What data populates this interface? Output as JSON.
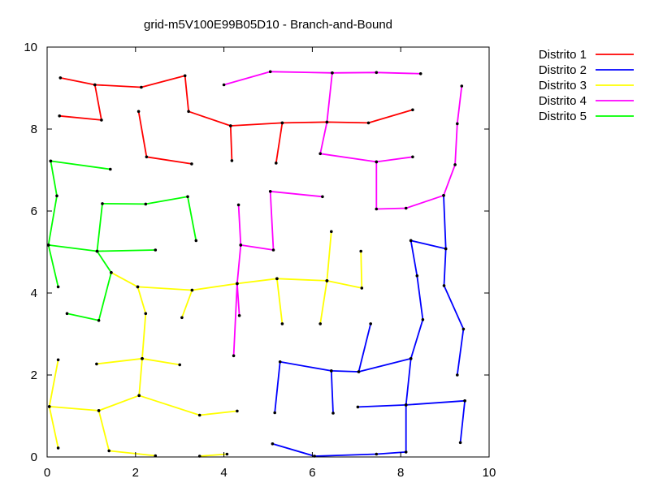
{
  "chart_data": {
    "type": "line",
    "title": "grid-m5V100E99B05D10 -  Branch-and-Bound",
    "xlabel": "",
    "ylabel": "",
    "xlim": [
      0,
      10
    ],
    "ylim": [
      0,
      10
    ],
    "x_ticks": [
      "0",
      "2",
      "4",
      "6",
      "8",
      "10"
    ],
    "y_ticks": [
      "0",
      "2",
      "4",
      "6",
      "8",
      "10"
    ],
    "grid": false,
    "legend_position": "outside-top-right",
    "series": [
      {
        "name": "Distrito 1",
        "color": "#ff0000",
        "segments": [
          [
            [
              0.3,
              9.25
            ],
            [
              1.08,
              9.08
            ],
            [
              2.13,
              9.02
            ],
            [
              3.12,
              9.3
            ],
            [
              3.2,
              8.43
            ],
            [
              4.15,
              8.08
            ],
            [
              5.32,
              8.15
            ],
            [
              6.33,
              8.17
            ],
            [
              7.27,
              8.15
            ],
            [
              8.27,
              8.47
            ]
          ],
          [
            [
              1.08,
              9.08
            ],
            [
              1.23,
              8.22
            ],
            [
              0.28,
              8.32
            ]
          ],
          [
            [
              4.15,
              8.08
            ],
            [
              4.18,
              7.23
            ]
          ],
          [
            [
              5.32,
              8.15
            ],
            [
              5.18,
              7.17
            ]
          ],
          [
            [
              2.07,
              8.43
            ],
            [
              2.25,
              7.32
            ],
            [
              3.27,
              7.15
            ]
          ]
        ]
      },
      {
        "name": "Distrito 2",
        "color": "#0000ff",
        "segments": [
          [
            [
              8.23,
              5.28
            ],
            [
              9.02,
              5.08
            ],
            [
              8.98,
              4.18
            ],
            [
              9.42,
              3.12
            ],
            [
              9.28,
              2.0
            ]
          ],
          [
            [
              9.02,
              5.08
            ],
            [
              8.97,
              6.38
            ]
          ],
          [
            [
              8.23,
              5.28
            ],
            [
              8.37,
              4.42
            ],
            [
              8.5,
              3.35
            ],
            [
              8.23,
              2.4
            ],
            [
              7.05,
              2.08
            ],
            [
              6.43,
              2.1
            ],
            [
              5.27,
              2.32
            ],
            [
              5.15,
              1.08
            ]
          ],
          [
            [
              7.05,
              2.08
            ],
            [
              7.32,
              3.25
            ]
          ],
          [
            [
              6.43,
              2.1
            ],
            [
              6.47,
              1.07
            ]
          ],
          [
            [
              8.23,
              2.4
            ],
            [
              8.12,
              1.27
            ],
            [
              7.03,
              1.22
            ]
          ],
          [
            [
              8.12,
              1.27
            ],
            [
              9.45,
              1.37
            ]
          ],
          [
            [
              8.12,
              1.27
            ],
            [
              8.12,
              0.12
            ],
            [
              7.45,
              0.07
            ],
            [
              6.05,
              0.02
            ],
            [
              5.1,
              0.32
            ]
          ],
          [
            [
              9.45,
              1.37
            ],
            [
              9.35,
              0.35
            ]
          ]
        ]
      },
      {
        "name": "Distrito 3",
        "color": "#ffff00",
        "segments": [
          [
            [
              7.1,
              5.02
            ],
            [
              7.12,
              4.12
            ],
            [
              6.33,
              4.3
            ],
            [
              5.2,
              4.35
            ],
            [
              4.3,
              4.23
            ],
            [
              3.28,
              4.07
            ],
            [
              2.05,
              4.15
            ],
            [
              1.45,
              4.5
            ]
          ],
          [
            [
              6.33,
              4.3
            ],
            [
              6.43,
              5.5
            ]
          ],
          [
            [
              6.33,
              4.3
            ],
            [
              6.18,
              3.25
            ]
          ],
          [
            [
              5.2,
              4.35
            ],
            [
              5.32,
              3.25
            ]
          ],
          [
            [
              3.28,
              4.07
            ],
            [
              3.05,
              3.4
            ]
          ],
          [
            [
              2.05,
              4.15
            ],
            [
              2.23,
              3.5
            ],
            [
              2.15,
              2.4
            ],
            [
              1.12,
              2.27
            ]
          ],
          [
            [
              2.15,
              2.4
            ],
            [
              3.0,
              2.25
            ]
          ],
          [
            [
              2.15,
              2.4
            ],
            [
              2.08,
              1.5
            ],
            [
              1.17,
              1.13
            ],
            [
              0.05,
              1.23
            ],
            [
              0.25,
              2.37
            ]
          ],
          [
            [
              0.05,
              1.23
            ],
            [
              0.25,
              0.22
            ]
          ],
          [
            [
              2.08,
              1.5
            ],
            [
              3.45,
              1.02
            ],
            [
              4.3,
              1.12
            ]
          ],
          [
            [
              1.17,
              1.13
            ],
            [
              1.4,
              0.15
            ],
            [
              2.45,
              0.03
            ]
          ],
          [
            [
              3.45,
              0.02
            ],
            [
              4.07,
              0.07
            ]
          ]
        ]
      },
      {
        "name": "Distrito 4",
        "color": "#ff00ff",
        "segments": [
          [
            [
              4.0,
              9.08
            ],
            [
              5.05,
              9.4
            ],
            [
              6.45,
              9.37
            ],
            [
              7.45,
              9.38
            ],
            [
              8.45,
              9.35
            ]
          ],
          [
            [
              6.45,
              9.37
            ],
            [
              6.33,
              8.17
            ],
            [
              6.18,
              7.4
            ],
            [
              7.45,
              7.2
            ],
            [
              8.27,
              7.32
            ]
          ],
          [
            [
              7.45,
              7.2
            ],
            [
              7.45,
              6.05
            ],
            [
              8.12,
              6.07
            ],
            [
              8.97,
              6.38
            ],
            [
              9.23,
              7.13
            ],
            [
              9.28,
              8.13
            ],
            [
              9.38,
              9.05
            ]
          ],
          [
            [
              6.23,
              6.35
            ],
            [
              5.05,
              6.48
            ],
            [
              5.12,
              5.05
            ],
            [
              4.38,
              5.17
            ],
            [
              4.33,
              6.15
            ]
          ],
          [
            [
              4.38,
              5.17
            ],
            [
              4.3,
              4.23
            ],
            [
              4.35,
              3.45
            ]
          ],
          [
            [
              4.3,
              4.23
            ],
            [
              4.22,
              2.47
            ]
          ]
        ]
      },
      {
        "name": "Distrito 5",
        "color": "#00ff00",
        "segments": [
          [
            [
              0.08,
              7.22
            ],
            [
              1.43,
              7.02
            ]
          ],
          [
            [
              0.08,
              7.22
            ],
            [
              0.22,
              6.37
            ],
            [
              0.03,
              5.17
            ],
            [
              1.13,
              5.02
            ],
            [
              2.45,
              5.05
            ]
          ],
          [
            [
              0.03,
              5.17
            ],
            [
              0.25,
              4.15
            ]
          ],
          [
            [
              1.13,
              5.02
            ],
            [
              1.25,
              6.18
            ],
            [
              2.23,
              6.17
            ],
            [
              3.18,
              6.35
            ],
            [
              3.37,
              5.28
            ]
          ],
          [
            [
              1.13,
              5.02
            ],
            [
              1.45,
              4.5
            ],
            [
              1.17,
              3.33
            ],
            [
              0.45,
              3.5
            ]
          ]
        ]
      }
    ]
  }
}
